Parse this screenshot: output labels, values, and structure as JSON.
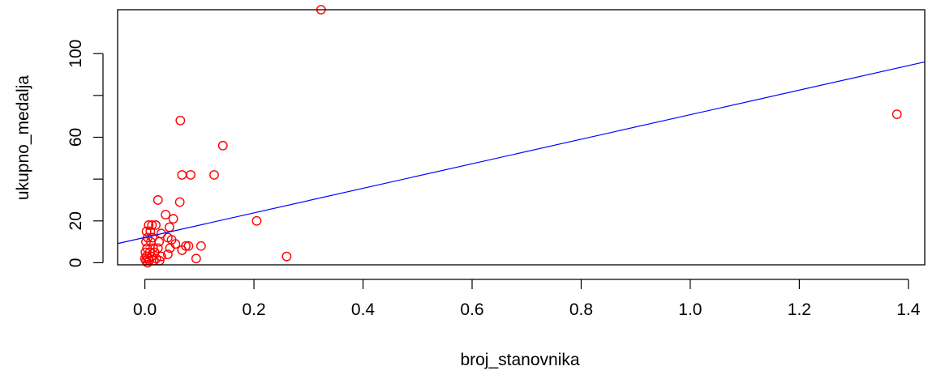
{
  "chart_data": {
    "type": "scatter",
    "title": "",
    "xlabel": "broj_stanovnika",
    "ylabel": "ukupno_medalja",
    "xlim": [
      -0.05,
      1.43
    ],
    "ylim": [
      -1,
      121
    ],
    "x_ticks": [
      0.0,
      0.2,
      0.4,
      0.6,
      0.8,
      1.0,
      1.2,
      1.4
    ],
    "x_tick_labels": [
      "0.0",
      "0.2",
      "0.4",
      "0.6",
      "0.8",
      "1.0",
      "1.2",
      "1.4"
    ],
    "y_ticks": [
      0,
      20,
      60,
      100
    ],
    "y_tick_labels": [
      "0",
      "20",
      "60",
      "100"
    ],
    "grid": false,
    "point_color": "#ff0000",
    "line_color": "#0000ff",
    "regression_line": {
      "intercept": 12.1,
      "slope": 58.7
    },
    "series": [
      {
        "marker": "open-circle",
        "points": [
          {
            "x": 0.323,
            "y": 121
          },
          {
            "x": 1.379,
            "y": 71
          },
          {
            "x": 0.065,
            "y": 68
          },
          {
            "x": 0.143,
            "y": 56
          },
          {
            "x": 0.068,
            "y": 42
          },
          {
            "x": 0.084,
            "y": 42
          },
          {
            "x": 0.127,
            "y": 42
          },
          {
            "x": 0.024,
            "y": 30
          },
          {
            "x": 0.064,
            "y": 29
          },
          {
            "x": 0.038,
            "y": 23
          },
          {
            "x": 0.052,
            "y": 21
          },
          {
            "x": 0.205,
            "y": 20
          },
          {
            "x": 0.007,
            "y": 18
          },
          {
            "x": 0.013,
            "y": 18
          },
          {
            "x": 0.02,
            "y": 18
          },
          {
            "x": 0.045,
            "y": 17
          },
          {
            "x": 0.003,
            "y": 15
          },
          {
            "x": 0.01,
            "y": 15
          },
          {
            "x": 0.03,
            "y": 14
          },
          {
            "x": 0.005,
            "y": 12
          },
          {
            "x": 0.014,
            "y": 12
          },
          {
            "x": 0.042,
            "y": 12
          },
          {
            "x": 0.049,
            "y": 11
          },
          {
            "x": 0.002,
            "y": 10
          },
          {
            "x": 0.011,
            "y": 10
          },
          {
            "x": 0.026,
            "y": 10
          },
          {
            "x": 0.056,
            "y": 9
          },
          {
            "x": 0.08,
            "y": 8
          },
          {
            "x": 0.075,
            "y": 8
          },
          {
            "x": 0.103,
            "y": 8
          },
          {
            "x": 0.004,
            "y": 7
          },
          {
            "x": 0.015,
            "y": 7
          },
          {
            "x": 0.024,
            "y": 7
          },
          {
            "x": 0.046,
            "y": 7
          },
          {
            "x": 0.068,
            "y": 6
          },
          {
            "x": 0.001,
            "y": 5
          },
          {
            "x": 0.009,
            "y": 5
          },
          {
            "x": 0.018,
            "y": 5
          },
          {
            "x": 0.042,
            "y": 4
          },
          {
            "x": 0.003,
            "y": 3
          },
          {
            "x": 0.012,
            "y": 3
          },
          {
            "x": 0.03,
            "y": 3
          },
          {
            "x": 0.26,
            "y": 3
          },
          {
            "x": 0.0,
            "y": 2
          },
          {
            "x": 0.006,
            "y": 2
          },
          {
            "x": 0.021,
            "y": 2
          },
          {
            "x": 0.094,
            "y": 2
          },
          {
            "x": 0.002,
            "y": 1
          },
          {
            "x": 0.008,
            "y": 1
          },
          {
            "x": 0.016,
            "y": 1
          },
          {
            "x": 0.027,
            "y": 1
          },
          {
            "x": 0.005,
            "y": 0
          }
        ]
      }
    ]
  }
}
